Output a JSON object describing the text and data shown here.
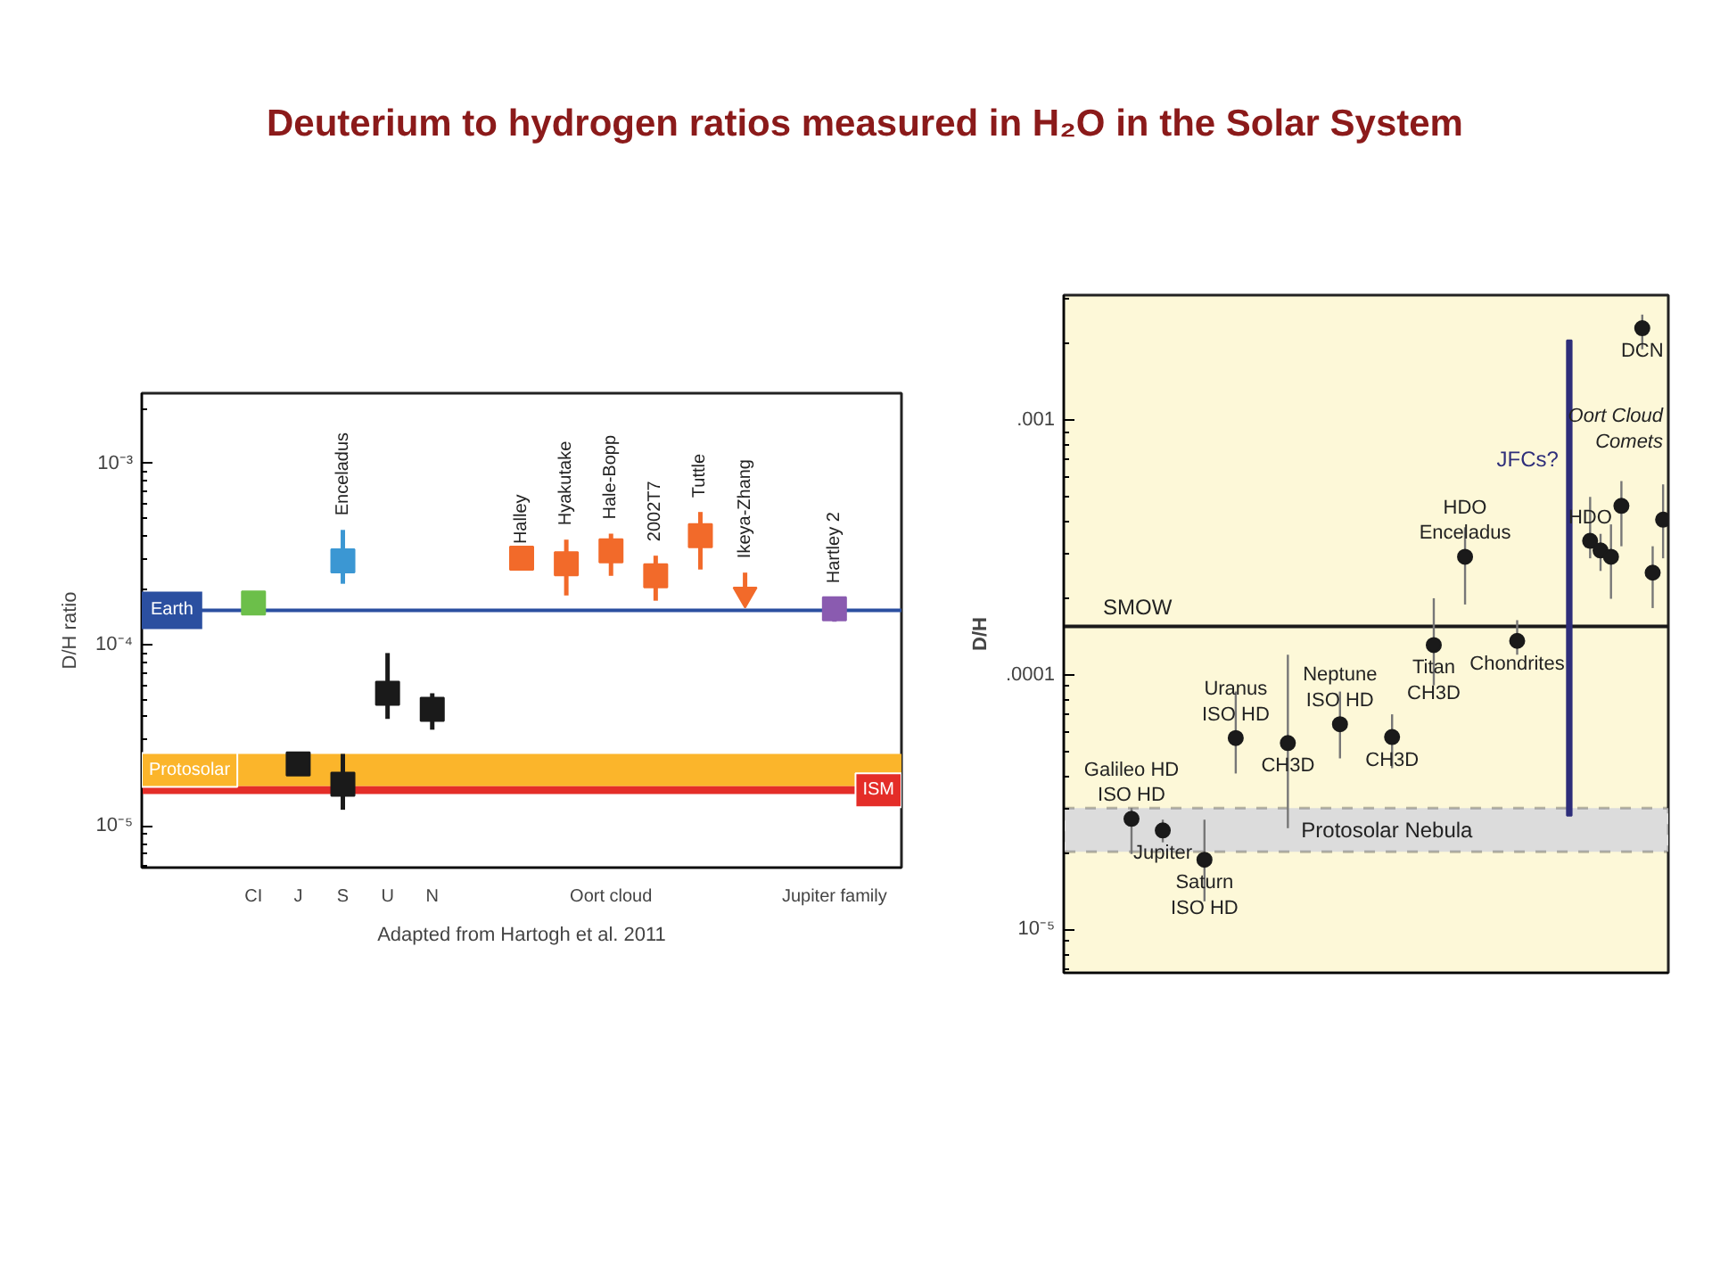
{
  "chart_data": [
    {
      "type": "scatter",
      "title": "Deuterium to hydrogen ratios measured in H₂O in the Solar System",
      "ylabel": "D/H ratio",
      "log": "y",
      "ylim": [
        5.9e-06,
        0.00244
      ],
      "yticks": [
        {
          "value": 1e-05,
          "label": "10⁻⁵"
        },
        {
          "value": 0.0001,
          "label": "10⁻⁴"
        },
        {
          "value": 0.001,
          "label": "10⁻³"
        }
      ],
      "categories": [
        null,
        null,
        "CI",
        "J",
        "S",
        "U",
        "N",
        null,
        null,
        null,
        "Oort cloud",
        null,
        null,
        null,
        null,
        "Jupiter family",
        null
      ],
      "marker": "square",
      "series": [
        {
          "color": "#6cbf4a",
          "values": [
            null,
            null,
            0.00017,
            null,
            null,
            null,
            null,
            null,
            null,
            null,
            null,
            null,
            null,
            null,
            null,
            null,
            null
          ]
        },
        {
          "color": "#3b97d3",
          "values": [
            null,
            null,
            null,
            null,
            0.00029,
            null,
            null,
            null,
            null,
            null,
            null,
            null,
            null,
            null,
            null,
            null,
            null
          ],
          "errors": [
            null,
            null,
            null,
            null,
            [
              0.000217,
              0.00043
            ],
            null,
            null,
            null,
            null,
            null,
            null,
            null,
            null,
            null,
            null,
            null,
            null
          ],
          "value_labels": [
            null,
            null,
            null,
            null,
            "Enceladus",
            null,
            null,
            null,
            null,
            null,
            null,
            null,
            null,
            null,
            null,
            null,
            null
          ]
        },
        {
          "color": "#1a1a1a",
          "values": [
            null,
            null,
            null,
            2.2e-05,
            1.7e-05,
            5.4e-05,
            4.4e-05,
            null,
            null,
            null,
            null,
            null,
            null,
            null,
            null,
            null,
            null
          ],
          "errors": [
            null,
            null,
            null,
            null,
            [
              1.23e-05,
              2.5e-05
            ],
            [
              3.9e-05,
              9e-05
            ],
            [
              3.4e-05,
              5.4e-05
            ],
            null,
            null,
            null,
            null,
            null,
            null,
            null,
            null,
            null,
            null
          ]
        },
        {
          "color": "#f26a2a",
          "values": [
            null,
            null,
            null,
            null,
            null,
            null,
            null,
            null,
            0.0003,
            0.00028,
            0.00033,
            0.00024,
            0.0004,
            null,
            null,
            null,
            null
          ],
          "errors": [
            null,
            null,
            null,
            null,
            null,
            null,
            null,
            null,
            null,
            [
              0.000187,
              0.00038
            ],
            [
              0.00024,
              0.00041
            ],
            [
              0.000175,
              0.00031
            ],
            [
              0.00026,
              0.00054
            ],
            null,
            null,
            null,
            null
          ],
          "value_labels": [
            null,
            null,
            null,
            null,
            null,
            null,
            null,
            null,
            "Halley",
            "Hyakutake",
            "Hale-Bopp",
            "2002T7",
            "Tuttle",
            null,
            null,
            null,
            null
          ]
        },
        {
          "color": "#f26a2a",
          "marker": "triangle",
          "values": [
            null,
            null,
            null,
            null,
            null,
            null,
            null,
            null,
            null,
            null,
            null,
            null,
            null,
            0.00019,
            null,
            null,
            null
          ],
          "errors": [
            null,
            null,
            null,
            null,
            null,
            null,
            null,
            null,
            null,
            null,
            null,
            null,
            null,
            [
              0.00019,
              0.00025
            ],
            null,
            null,
            null
          ],
          "value_labels": [
            null,
            null,
            null,
            null,
            null,
            null,
            null,
            null,
            null,
            null,
            null,
            null,
            null,
            "Ikeya-Zhang",
            null,
            null,
            null
          ]
        },
        {
          "color": "#8a5bb0",
          "values": [
            null,
            null,
            null,
            null,
            null,
            null,
            null,
            null,
            null,
            null,
            null,
            null,
            null,
            null,
            null,
            0.000158,
            null
          ],
          "errors": [
            null,
            null,
            null,
            null,
            null,
            null,
            null,
            null,
            null,
            null,
            null,
            null,
            null,
            null,
            null,
            2.4e-05,
            null
          ],
          "value_labels": [
            null,
            null,
            null,
            null,
            null,
            null,
            null,
            null,
            null,
            null,
            null,
            null,
            null,
            null,
            null,
            "Hartley 2",
            null
          ]
        }
      ],
      "ref_lines": [
        {
          "axis": "y",
          "value": 0.000155,
          "label": "Earth",
          "color": "#2b4fa0"
        }
      ],
      "bands": [
        {
          "axis": "y",
          "from": 1.66e-05,
          "to": 2.5e-05,
          "label": "Protosolar",
          "color": "#fbb52b"
        },
        {
          "axis": "y",
          "from": 1.5e-05,
          "to": 1.66e-05,
          "label": "ISM",
          "color": "#e42d28"
        }
      ],
      "annotations": [
        "Adapted from Hartogh et al. 2011"
      ]
    },
    {
      "type": "scatter",
      "ylabel": "D/H",
      "log": "y",
      "ylim": [
        6.76e-06,
        0.0031
      ],
      "yticks": [
        {
          "value": 1e-05,
          "label": "10⁻⁵"
        },
        {
          "value": 0.0001,
          "label": ".0001"
        },
        {
          "value": 0.001,
          "label": ".001"
        }
      ],
      "categories": [
        null,
        null,
        null,
        null,
        null,
        null,
        null,
        null,
        null,
        null,
        null,
        null,
        null,
        null,
        null,
        null,
        null,
        null,
        null,
        null,
        null,
        null,
        null,
        null,
        null,
        null,
        null,
        null,
        null,
        null,
        null,
        null,
        null,
        null,
        null,
        null,
        null,
        null,
        null,
        null,
        null,
        null,
        null,
        null,
        null,
        null,
        null,
        null,
        null,
        null,
        null,
        null,
        null,
        null,
        null,
        null,
        null,
        null
      ],
      "tick_labels": "y",
      "marker": "circle",
      "series": [
        {
          "color": "#1a1a1a",
          "values": [
            null,
            null,
            null,
            null,
            null,
            null,
            2.72e-05,
            null,
            null,
            2.45e-05,
            null,
            null,
            null,
            1.88e-05,
            null,
            null,
            5.65e-05,
            null,
            null,
            null,
            null,
            5.4e-05,
            null,
            null,
            null,
            null,
            6.4e-05,
            null,
            null,
            null,
            null,
            5.7e-05,
            null,
            null,
            null,
            0.000131,
            null,
            null,
            0.000291,
            null,
            null,
            null,
            null,
            0.000136,
            null,
            null,
            null,
            null,
            null,
            null,
            0.000336,
            0.000308,
            0.000291,
            0.000461,
            null,
            0.0023,
            0.000252,
            0.000407
          ],
          "errors": [
            null,
            null,
            null,
            null,
            null,
            null,
            [
              1.98e-05,
              3e-05
            ],
            null,
            null,
            [
              2.2e-05,
              2.7e-05
            ],
            null,
            null,
            null,
            [
              1.29e-05,
              2.7e-05
            ],
            null,
            null,
            [
              4.1e-05,
              8.6e-05
            ],
            null,
            null,
            null,
            null,
            [
              2.5e-05,
              0.00012
            ],
            null,
            null,
            null,
            null,
            [
              4.7e-05,
              8.6e-05
            ],
            null,
            null,
            null,
            null,
            [
              4.3e-05,
              7e-05
            ],
            null,
            null,
            null,
            [
              9.1e-05,
              0.0002
            ],
            null,
            null,
            [
              0.000189,
              0.00038
            ],
            null,
            null,
            null,
            null,
            [
              0.00012,
              0.000164
            ],
            null,
            null,
            null,
            null,
            null,
            null,
            [
              0.000287,
              0.0005
            ],
            [
              0.000256,
              0.000358
            ],
            [
              0.000199,
              0.00039
            ],
            [
              0.00032,
              0.000577
            ],
            null,
            [
              0.0019,
              0.0026
            ],
            [
              0.000183,
              0.00032
            ],
            [
              0.000287,
              0.00056
            ]
          ],
          "value_labels": [
            null,
            null,
            null,
            null,
            null,
            null,
            "Galileo HD\nISO HD",
            null,
            null,
            "Jupiter",
            null,
            null,
            null,
            "Saturn\nISO HD",
            null,
            null,
            "Uranus\nISO HD",
            null,
            null,
            null,
            null,
            "CH3D",
            null,
            null,
            null,
            null,
            "Neptune\nISO HD",
            null,
            null,
            null,
            null,
            "CH3D",
            null,
            null,
            null,
            "Titan\nCH3D",
            null,
            null,
            "HDO\nEnceladus",
            null,
            null,
            null,
            null,
            "Chondrites",
            null,
            null,
            null,
            null,
            null,
            null,
            "HDO",
            null,
            null,
            null,
            null,
            "DCN",
            null,
            null
          ]
        },
        {
          "type": "bar",
          "name": "JFCs?",
          "color": "#2e2e7a",
          "values": [
            null,
            null,
            null,
            null,
            null,
            null,
            null,
            null,
            null,
            null,
            null,
            null,
            null,
            null,
            null,
            null,
            null,
            null,
            null,
            null,
            null,
            null,
            null,
            null,
            null,
            null,
            null,
            null,
            null,
            null,
            null,
            null,
            null,
            null,
            null,
            null,
            null,
            null,
            null,
            null,
            null,
            null,
            null,
            null,
            null,
            null,
            null,
            null,
            0.002032,
            null,
            null,
            null,
            null,
            null,
            null,
            null,
            null,
            null
          ],
          "base": [
            null,
            null,
            null,
            null,
            null,
            null,
            null,
            null,
            null,
            null,
            null,
            null,
            null,
            null,
            null,
            null,
            null,
            null,
            null,
            null,
            null,
            null,
            null,
            null,
            null,
            null,
            null,
            null,
            null,
            null,
            null,
            null,
            null,
            null,
            null,
            null,
            null,
            null,
            null,
            null,
            null,
            null,
            null,
            null,
            null,
            null,
            null,
            null,
            2.8e-05,
            null,
            null,
            null,
            null,
            null,
            null,
            null,
            null,
            null
          ]
        }
      ],
      "ref_lines": [
        {
          "axis": "y",
          "value": 0.000155,
          "label": "SMOW",
          "color": "#1a1a1a"
        }
      ],
      "bands": [
        {
          "axis": "y",
          "from": 2.02e-05,
          "to": 3e-05,
          "label": "Protosolar Nebula",
          "color": "#dcdcdc"
        }
      ],
      "annotations": [
        "Oort Cloud\nComets"
      ]
    }
  ]
}
